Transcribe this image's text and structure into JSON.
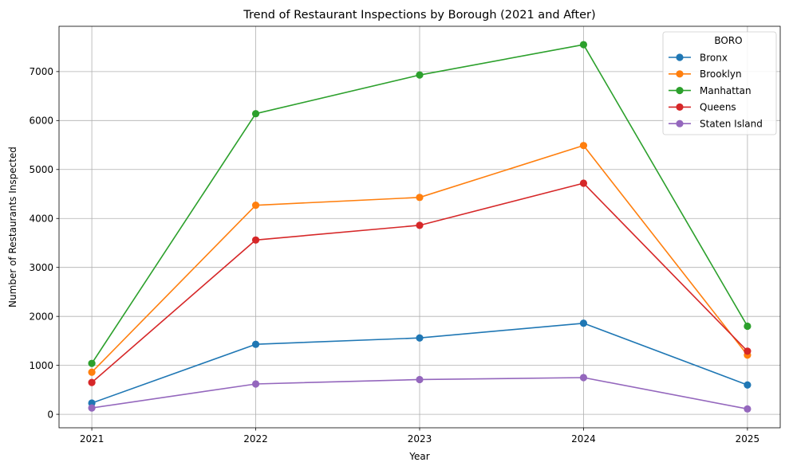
{
  "chart_data": {
    "type": "line",
    "title": "Trend of Restaurant Inspections by Borough (2021 and After)",
    "xlabel": "Year",
    "ylabel": "Number of Restaurants Inspected",
    "x": [
      "2021",
      "2022",
      "2023",
      "2024",
      "2025"
    ],
    "xlim": [
      2020.8,
      2025.2
    ],
    "ylim": [
      -275,
      7925
    ],
    "y_ticks": [
      "0",
      "1000",
      "2000",
      "3000",
      "4000",
      "5000",
      "6000",
      "7000"
    ],
    "grid": true,
    "markers": true,
    "legend": {
      "title": "BORO",
      "position": "top-right"
    },
    "series": [
      {
        "name": "Bronx",
        "color": "#1f77b4",
        "values": [
          230,
          1430,
          1560,
          1860,
          600
        ]
      },
      {
        "name": "Brooklyn",
        "color": "#ff7f0e",
        "values": [
          860,
          4270,
          4430,
          5490,
          1210
        ]
      },
      {
        "name": "Manhattan",
        "color": "#2ca02c",
        "values": [
          1040,
          6140,
          6930,
          7550,
          1800
        ]
      },
      {
        "name": "Queens",
        "color": "#d62728",
        "values": [
          650,
          3560,
          3860,
          4720,
          1290
        ]
      },
      {
        "name": "Staten Island",
        "color": "#9467bd",
        "values": [
          130,
          620,
          710,
          750,
          110
        ]
      }
    ]
  }
}
